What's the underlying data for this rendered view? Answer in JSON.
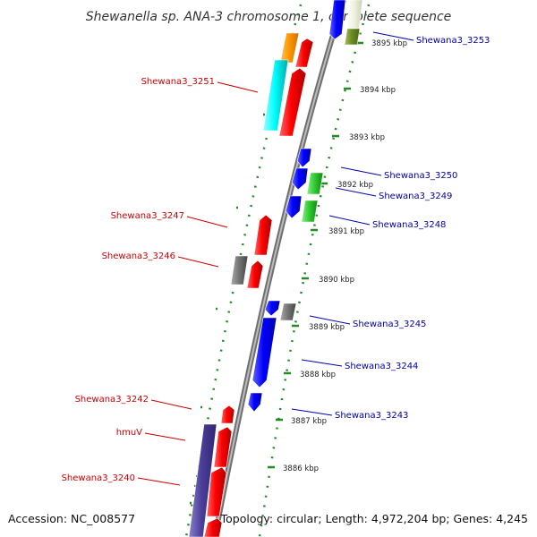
{
  "title": "Shewanella sp. ANA-3 chromosome 1, complete sequence",
  "accession": "Accession: NC_008577",
  "topology": "Topology: circular; Length: 4,972,204 bp; Genes: 4,245",
  "colors": {
    "forward_label": "#cc0000",
    "reverse_label": "#0000aa",
    "backbone": "#888888",
    "ticks": "#228b22"
  },
  "ticks": [
    "3895 kbp",
    "3894 kbp",
    "3893 kbp",
    "3892 kbp",
    "3891 kbp",
    "3890 kbp",
    "3889 kbp",
    "3888 kbp",
    "3887 kbp",
    "3886 kbp"
  ],
  "labels": {
    "left": [
      "Shewana3_3251",
      "Shewana3_3247",
      "Shewana3_3246",
      "Shewana3_3242",
      "hmuV",
      "Shewana3_3240"
    ],
    "right": [
      "Shewana3_3253",
      "Shewana3_3250",
      "Shewana3_3249",
      "Shewana3_3248",
      "Shewana3_3245",
      "Shewana3_3244",
      "Shewana3_3243"
    ]
  }
}
